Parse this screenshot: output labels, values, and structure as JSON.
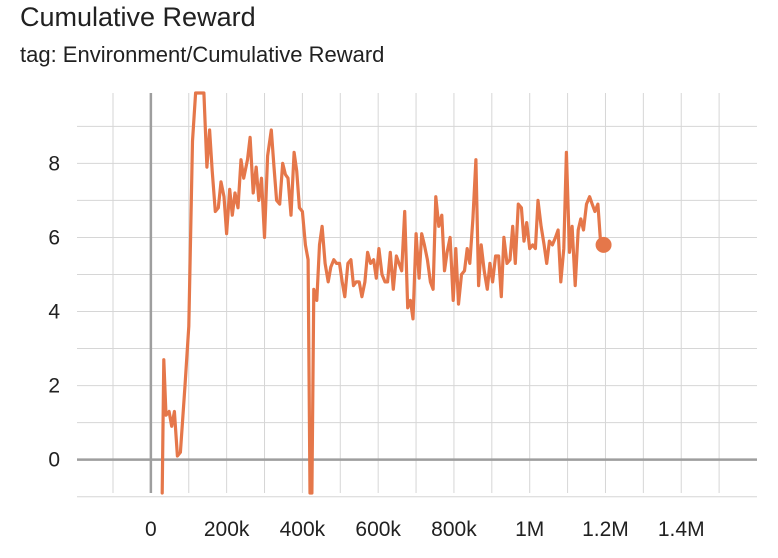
{
  "header": {
    "title": "Cumulative Reward",
    "subtitle": "tag: Environment/Cumulative Reward"
  },
  "colors": {
    "series": "#e5774a",
    "grid": "#d6d6d6",
    "zero_axis": "#9e9e9e"
  },
  "chart_data": {
    "type": "line",
    "title": "Cumulative Reward",
    "subtitle": "tag: Environment/Cumulative Reward",
    "xlabel": "",
    "ylabel": "",
    "xlim": [
      -195000,
      1600000
    ],
    "ylim": [
      -0.9,
      9.9
    ],
    "x_ticks": [
      {
        "value": 0,
        "label": "0"
      },
      {
        "value": 200000,
        "label": "200k"
      },
      {
        "value": 400000,
        "label": "400k"
      },
      {
        "value": 600000,
        "label": "600k"
      },
      {
        "value": 800000,
        "label": "800k"
      },
      {
        "value": 1000000,
        "label": "1M"
      },
      {
        "value": 1200000,
        "label": "1.2M"
      },
      {
        "value": 1400000,
        "label": "1.4M"
      }
    ],
    "y_ticks": [
      {
        "value": 0,
        "label": "0"
      },
      {
        "value": 2,
        "label": "2"
      },
      {
        "value": 4,
        "label": "4"
      },
      {
        "value": 6,
        "label": "6"
      },
      {
        "value": 8,
        "label": "8"
      }
    ],
    "grid": true,
    "legend": "none",
    "series": [
      {
        "values": [
          [
            30000,
            -0.9
          ],
          [
            34000,
            2.7
          ],
          [
            40000,
            1.2
          ],
          [
            48000,
            1.3
          ],
          [
            55000,
            0.9
          ],
          [
            62000,
            1.3
          ],
          [
            70000,
            0.1
          ],
          [
            78000,
            0.2
          ],
          [
            90000,
            2.0
          ],
          [
            100000,
            3.6
          ],
          [
            110000,
            8.6
          ],
          [
            118000,
            9.9
          ],
          [
            140000,
            9.9
          ],
          [
            148000,
            7.9
          ],
          [
            155000,
            8.9
          ],
          [
            162000,
            7.8
          ],
          [
            170000,
            6.7
          ],
          [
            178000,
            6.8
          ],
          [
            185000,
            7.5
          ],
          [
            193000,
            7.1
          ],
          [
            200000,
            6.1
          ],
          [
            208000,
            7.3
          ],
          [
            215000,
            6.6
          ],
          [
            222000,
            7.2
          ],
          [
            230000,
            6.8
          ],
          [
            238000,
            8.1
          ],
          [
            245000,
            7.6
          ],
          [
            255000,
            8.1
          ],
          [
            262000,
            8.7
          ],
          [
            270000,
            7.2
          ],
          [
            278000,
            7.9
          ],
          [
            285000,
            7.0
          ],
          [
            292000,
            7.6
          ],
          [
            300000,
            6.0
          ],
          [
            308000,
            8.2
          ],
          [
            318000,
            8.9
          ],
          [
            325000,
            7.9
          ],
          [
            332000,
            7.0
          ],
          [
            340000,
            6.9
          ],
          [
            348000,
            8.0
          ],
          [
            355000,
            7.7
          ],
          [
            362000,
            7.6
          ],
          [
            370000,
            6.6
          ],
          [
            378000,
            8.3
          ],
          [
            385000,
            7.8
          ],
          [
            392000,
            6.8
          ],
          [
            400000,
            6.7
          ],
          [
            408000,
            5.8
          ],
          [
            415000,
            5.4
          ],
          [
            420000,
            -0.9
          ],
          [
            425000,
            -0.9
          ],
          [
            430000,
            4.6
          ],
          [
            438000,
            4.3
          ],
          [
            445000,
            5.8
          ],
          [
            452000,
            6.3
          ],
          [
            460000,
            5.3
          ],
          [
            468000,
            4.8
          ],
          [
            475000,
            5.2
          ],
          [
            483000,
            5.4
          ],
          [
            490000,
            5.3
          ],
          [
            498000,
            5.3
          ],
          [
            505000,
            4.8
          ],
          [
            512000,
            4.4
          ],
          [
            520000,
            5.3
          ],
          [
            528000,
            5.4
          ],
          [
            535000,
            4.7
          ],
          [
            542000,
            4.8
          ],
          [
            550000,
            4.8
          ],
          [
            557000,
            4.4
          ],
          [
            565000,
            4.8
          ],
          [
            572000,
            5.6
          ],
          [
            580000,
            5.3
          ],
          [
            588000,
            5.4
          ],
          [
            595000,
            4.9
          ],
          [
            602000,
            5.7
          ],
          [
            610000,
            5.0
          ],
          [
            618000,
            4.8
          ],
          [
            625000,
            4.8
          ],
          [
            632000,
            5.6
          ],
          [
            640000,
            4.6
          ],
          [
            648000,
            5.5
          ],
          [
            655000,
            5.3
          ],
          [
            662000,
            5.1
          ],
          [
            670000,
            6.7
          ],
          [
            678000,
            4.1
          ],
          [
            685000,
            4.3
          ],
          [
            692000,
            3.8
          ],
          [
            700000,
            6.1
          ],
          [
            708000,
            4.9
          ],
          [
            715000,
            6.1
          ],
          [
            722000,
            5.8
          ],
          [
            730000,
            5.4
          ],
          [
            738000,
            4.8
          ],
          [
            745000,
            4.6
          ],
          [
            752000,
            7.1
          ],
          [
            760000,
            6.3
          ],
          [
            768000,
            6.6
          ],
          [
            775000,
            5.1
          ],
          [
            782000,
            5.6
          ],
          [
            790000,
            6.0
          ],
          [
            798000,
            4.3
          ],
          [
            805000,
            5.7
          ],
          [
            812000,
            4.2
          ],
          [
            820000,
            5.0
          ],
          [
            828000,
            5.1
          ],
          [
            835000,
            5.7
          ],
          [
            842000,
            5.3
          ],
          [
            850000,
            6.5
          ],
          [
            858000,
            8.1
          ],
          [
            865000,
            4.7
          ],
          [
            872000,
            5.8
          ],
          [
            880000,
            5.1
          ],
          [
            888000,
            4.6
          ],
          [
            895000,
            5.3
          ],
          [
            902000,
            4.8
          ],
          [
            910000,
            5.5
          ],
          [
            918000,
            5.5
          ],
          [
            925000,
            4.4
          ],
          [
            932000,
            6.0
          ],
          [
            940000,
            5.3
          ],
          [
            948000,
            5.4
          ],
          [
            955000,
            6.3
          ],
          [
            962000,
            5.3
          ],
          [
            970000,
            6.9
          ],
          [
            978000,
            6.8
          ],
          [
            985000,
            5.9
          ],
          [
            992000,
            6.4
          ],
          [
            1000000,
            5.7
          ],
          [
            1008000,
            5.8
          ],
          [
            1015000,
            5.7
          ],
          [
            1022000,
            7.0
          ],
          [
            1030000,
            6.3
          ],
          [
            1038000,
            5.8
          ],
          [
            1045000,
            5.3
          ],
          [
            1052000,
            5.9
          ],
          [
            1060000,
            5.8
          ],
          [
            1068000,
            6.0
          ],
          [
            1075000,
            6.2
          ],
          [
            1082000,
            4.8
          ],
          [
            1090000,
            5.7
          ],
          [
            1097000,
            8.3
          ],
          [
            1105000,
            5.6
          ],
          [
            1112000,
            6.3
          ],
          [
            1120000,
            4.7
          ],
          [
            1128000,
            6.2
          ],
          [
            1135000,
            6.5
          ],
          [
            1142000,
            6.2
          ],
          [
            1150000,
            6.9
          ],
          [
            1158000,
            7.1
          ],
          [
            1165000,
            6.9
          ],
          [
            1172000,
            6.7
          ],
          [
            1180000,
            6.9
          ],
          [
            1187000,
            5.9
          ],
          [
            1195000,
            5.8
          ]
        ]
      }
    ]
  }
}
